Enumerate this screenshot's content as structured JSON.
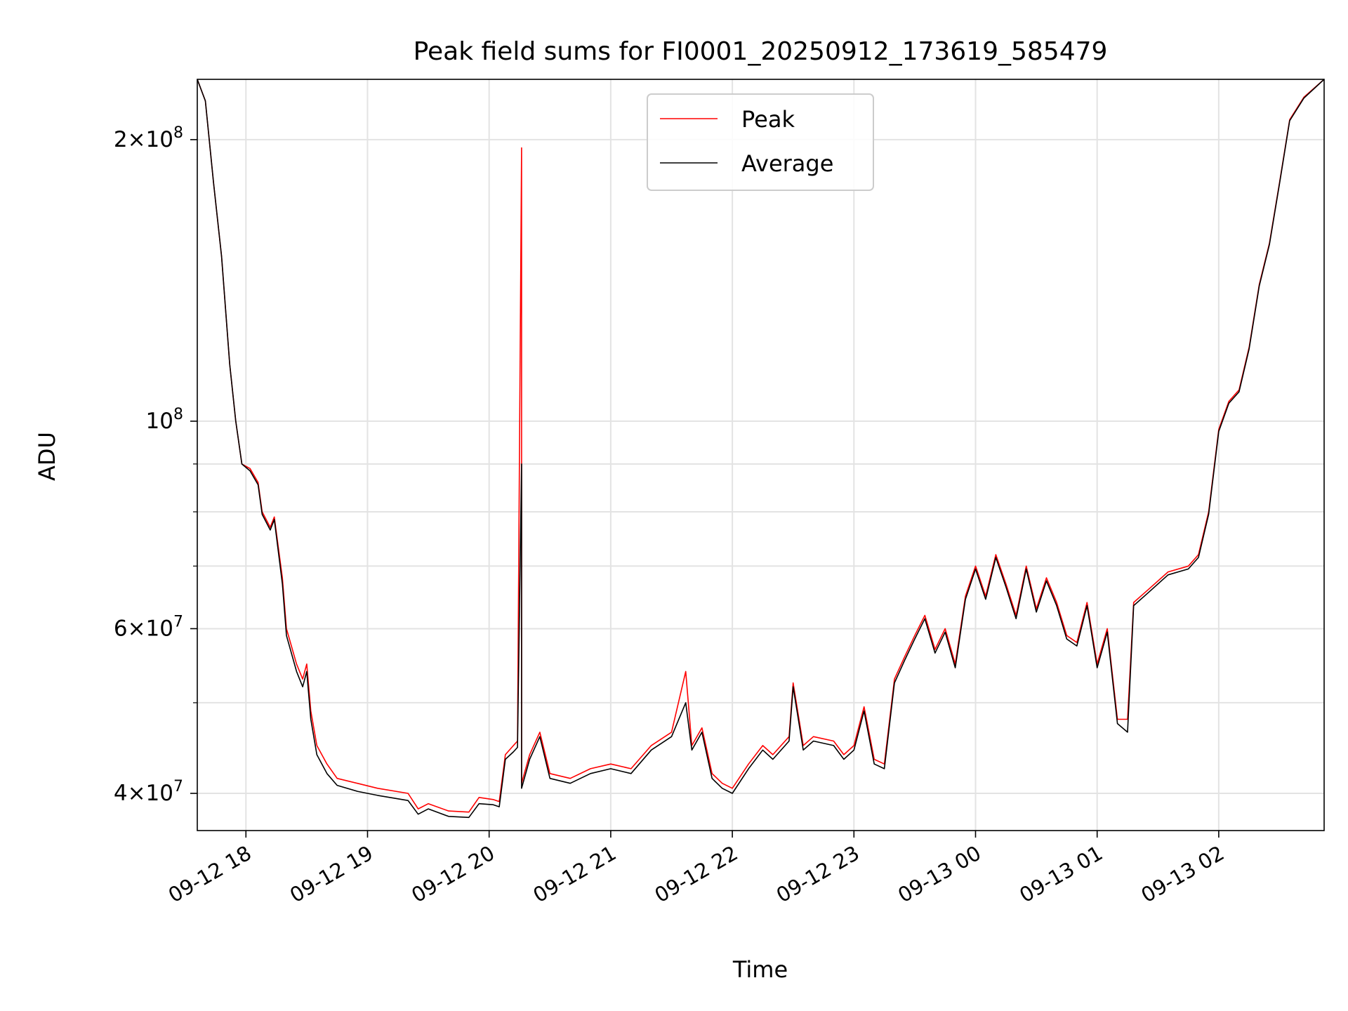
{
  "chart_data": {
    "type": "line",
    "title": "Peak field sums for FI0001_20250912_173619_585479",
    "xlabel": "Time",
    "ylabel": "ADU",
    "yscale": "log",
    "ylim": [
      36500000,
      232000000
    ],
    "xlim": [
      "2025-09-12 17:36",
      "2025-09-13 02:52"
    ],
    "x_ticks": [
      "2025-09-12 18:00",
      "2025-09-12 19:00",
      "2025-09-12 20:00",
      "2025-09-12 21:00",
      "2025-09-12 22:00",
      "2025-09-12 23:00",
      "2025-09-13 00:00",
      "2025-09-13 01:00",
      "2025-09-13 02:00"
    ],
    "x_tick_labels": [
      "09-12 18",
      "09-12 19",
      "09-12 20",
      "09-12 21",
      "09-12 22",
      "09-12 23",
      "09-13 00",
      "09-13 01",
      "09-13 02"
    ],
    "y_ticks": [
      {
        "value": 200000000,
        "mantissa": "2",
        "exponent": "8"
      },
      {
        "value": 100000000,
        "mantissa": "",
        "exponent": "8"
      },
      {
        "value": 60000000,
        "mantissa": "6",
        "exponent": "7"
      },
      {
        "value": 40000000,
        "mantissa": "4",
        "exponent": "7"
      }
    ],
    "y_minor_ticks": [
      50000000,
      70000000,
      80000000,
      90000000
    ],
    "grid": true,
    "legend_position": "upper center",
    "colors": {
      "peak": "#ff0000",
      "average": "#000000"
    },
    "series": [
      {
        "name": "Peak",
        "color": "#ff0000",
        "points": [
          [
            "2025-09-12 17:36",
            232000000
          ],
          [
            "2025-09-12 17:40",
            220000000
          ],
          [
            "2025-09-12 17:44",
            180000000
          ],
          [
            "2025-09-12 17:48",
            150000000
          ],
          [
            "2025-09-12 17:52",
            115000000
          ],
          [
            "2025-09-12 17:55",
            100000000
          ],
          [
            "2025-09-12 17:58",
            90000000
          ],
          [
            "2025-09-12 18:02",
            89000000
          ],
          [
            "2025-09-12 18:06",
            86000000
          ],
          [
            "2025-09-12 18:08",
            80000000
          ],
          [
            "2025-09-12 18:12",
            77000000
          ],
          [
            "2025-09-12 18:14",
            79000000
          ],
          [
            "2025-09-12 18:18",
            68000000
          ],
          [
            "2025-09-12 18:20",
            60000000
          ],
          [
            "2025-09-12 18:25",
            55000000
          ],
          [
            "2025-09-12 18:28",
            53000000
          ],
          [
            "2025-09-12 18:30",
            55000000
          ],
          [
            "2025-09-12 18:32",
            49000000
          ],
          [
            "2025-09-12 18:35",
            45000000
          ],
          [
            "2025-09-12 18:40",
            43000000
          ],
          [
            "2025-09-12 18:45",
            41500000
          ],
          [
            "2025-09-12 18:55",
            41000000
          ],
          [
            "2025-09-12 19:05",
            40500000
          ],
          [
            "2025-09-12 19:20",
            40000000
          ],
          [
            "2025-09-12 19:25",
            38500000
          ],
          [
            "2025-09-12 19:30",
            39000000
          ],
          [
            "2025-09-12 19:40",
            38300000
          ],
          [
            "2025-09-12 19:50",
            38200000
          ],
          [
            "2025-09-12 19:55",
            39600000
          ],
          [
            "2025-09-12 20:02",
            39400000
          ],
          [
            "2025-09-12 20:05",
            39200000
          ],
          [
            "2025-09-12 20:08",
            44000000
          ],
          [
            "2025-09-12 20:12",
            45000000
          ],
          [
            "2025-09-12 20:14",
            45500000
          ],
          [
            "2025-09-12 20:16",
            196000000
          ],
          [
            "2025-09-12 20:16",
            41000000
          ],
          [
            "2025-09-12 20:20",
            44000000
          ],
          [
            "2025-09-12 20:25",
            46500000
          ],
          [
            "2025-09-12 20:30",
            42000000
          ],
          [
            "2025-09-12 20:40",
            41500000
          ],
          [
            "2025-09-12 20:50",
            42500000
          ],
          [
            "2025-09-12 21:00",
            43000000
          ],
          [
            "2025-09-12 21:10",
            42500000
          ],
          [
            "2025-09-12 21:20",
            45000000
          ],
          [
            "2025-09-12 21:30",
            46500000
          ],
          [
            "2025-09-12 21:37",
            54000000
          ],
          [
            "2025-09-12 21:40",
            45000000
          ],
          [
            "2025-09-12 21:45",
            47000000
          ],
          [
            "2025-09-12 21:50",
            42000000
          ],
          [
            "2025-09-12 21:55",
            41000000
          ],
          [
            "2025-09-12 22:00",
            40500000
          ],
          [
            "2025-09-12 22:08",
            43000000
          ],
          [
            "2025-09-12 22:15",
            45000000
          ],
          [
            "2025-09-12 22:20",
            44000000
          ],
          [
            "2025-09-12 22:28",
            46000000
          ],
          [
            "2025-09-12 22:30",
            52500000
          ],
          [
            "2025-09-12 22:35",
            45000000
          ],
          [
            "2025-09-12 22:40",
            46000000
          ],
          [
            "2025-09-12 22:50",
            45500000
          ],
          [
            "2025-09-12 22:55",
            44000000
          ],
          [
            "2025-09-12 23:00",
            45000000
          ],
          [
            "2025-09-12 23:05",
            49500000
          ],
          [
            "2025-09-12 23:10",
            43500000
          ],
          [
            "2025-09-12 23:15",
            43000000
          ],
          [
            "2025-09-12 23:20",
            53000000
          ],
          [
            "2025-09-12 23:25",
            56000000
          ],
          [
            "2025-09-12 23:30",
            59000000
          ],
          [
            "2025-09-12 23:35",
            62000000
          ],
          [
            "2025-09-12 23:40",
            57000000
          ],
          [
            "2025-09-12 23:45",
            60000000
          ],
          [
            "2025-09-12 23:50",
            55000000
          ],
          [
            "2025-09-12 23:55",
            65000000
          ],
          [
            "2025-09-13 00:00",
            70000000
          ],
          [
            "2025-09-13 00:05",
            65000000
          ],
          [
            "2025-09-13 00:10",
            72000000
          ],
          [
            "2025-09-13 00:15",
            67000000
          ],
          [
            "2025-09-13 00:20",
            62000000
          ],
          [
            "2025-09-13 00:25",
            70000000
          ],
          [
            "2025-09-13 00:30",
            63000000
          ],
          [
            "2025-09-13 00:35",
            68000000
          ],
          [
            "2025-09-13 00:40",
            64000000
          ],
          [
            "2025-09-13 00:45",
            59000000
          ],
          [
            "2025-09-13 00:50",
            58000000
          ],
          [
            "2025-09-13 00:55",
            64000000
          ],
          [
            "2025-09-13 01:00",
            55000000
          ],
          [
            "2025-09-13 01:05",
            60000000
          ],
          [
            "2025-09-13 01:10",
            48000000
          ],
          [
            "2025-09-13 01:15",
            48000000
          ],
          [
            "2025-09-13 01:18",
            64000000
          ],
          [
            "2025-09-13 01:25",
            66000000
          ],
          [
            "2025-09-13 01:35",
            69000000
          ],
          [
            "2025-09-13 01:45",
            70000000
          ],
          [
            "2025-09-13 01:50",
            72000000
          ],
          [
            "2025-09-13 01:55",
            80000000
          ],
          [
            "2025-09-13 02:00",
            98000000
          ],
          [
            "2025-09-13 02:05",
            105000000
          ],
          [
            "2025-09-13 02:10",
            108000000
          ],
          [
            "2025-09-13 02:15",
            120000000
          ],
          [
            "2025-09-13 02:20",
            140000000
          ],
          [
            "2025-09-13 02:25",
            155000000
          ],
          [
            "2025-09-13 02:30",
            180000000
          ],
          [
            "2025-09-13 02:35",
            210000000
          ],
          [
            "2025-09-13 02:42",
            222000000
          ],
          [
            "2025-09-13 02:52",
            232000000
          ]
        ]
      },
      {
        "name": "Average",
        "color": "#000000",
        "points": [
          [
            "2025-09-12 17:36",
            232000000
          ],
          [
            "2025-09-12 17:40",
            220000000
          ],
          [
            "2025-09-12 17:44",
            180000000
          ],
          [
            "2025-09-12 17:48",
            150000000
          ],
          [
            "2025-09-12 17:52",
            115000000
          ],
          [
            "2025-09-12 17:55",
            100000000
          ],
          [
            "2025-09-12 17:58",
            90000000
          ],
          [
            "2025-09-12 18:02",
            88500000
          ],
          [
            "2025-09-12 18:06",
            85500000
          ],
          [
            "2025-09-12 18:08",
            79500000
          ],
          [
            "2025-09-12 18:12",
            76500000
          ],
          [
            "2025-09-12 18:14",
            78500000
          ],
          [
            "2025-09-12 18:18",
            67000000
          ],
          [
            "2025-09-12 18:20",
            59000000
          ],
          [
            "2025-09-12 18:25",
            54000000
          ],
          [
            "2025-09-12 18:28",
            52000000
          ],
          [
            "2025-09-12 18:30",
            54000000
          ],
          [
            "2025-09-12 18:32",
            48000000
          ],
          [
            "2025-09-12 18:35",
            44000000
          ],
          [
            "2025-09-12 18:40",
            42000000
          ],
          [
            "2025-09-12 18:45",
            40800000
          ],
          [
            "2025-09-12 18:55",
            40200000
          ],
          [
            "2025-09-12 19:05",
            39800000
          ],
          [
            "2025-09-12 19:20",
            39300000
          ],
          [
            "2025-09-12 19:25",
            38000000
          ],
          [
            "2025-09-12 19:30",
            38500000
          ],
          [
            "2025-09-12 19:40",
            37800000
          ],
          [
            "2025-09-12 19:50",
            37700000
          ],
          [
            "2025-09-12 19:55",
            39000000
          ],
          [
            "2025-09-12 20:02",
            38900000
          ],
          [
            "2025-09-12 20:05",
            38700000
          ],
          [
            "2025-09-12 20:08",
            43500000
          ],
          [
            "2025-09-12 20:12",
            44300000
          ],
          [
            "2025-09-12 20:14",
            44800000
          ],
          [
            "2025-09-12 20:16",
            90000000
          ],
          [
            "2025-09-12 20:16",
            40500000
          ],
          [
            "2025-09-12 20:20",
            43500000
          ],
          [
            "2025-09-12 20:25",
            46000000
          ],
          [
            "2025-09-12 20:30",
            41500000
          ],
          [
            "2025-09-12 20:40",
            41000000
          ],
          [
            "2025-09-12 20:50",
            42000000
          ],
          [
            "2025-09-12 21:00",
            42500000
          ],
          [
            "2025-09-12 21:10",
            42000000
          ],
          [
            "2025-09-12 21:20",
            44500000
          ],
          [
            "2025-09-12 21:30",
            46000000
          ],
          [
            "2025-09-12 21:37",
            50000000
          ],
          [
            "2025-09-12 21:40",
            44500000
          ],
          [
            "2025-09-12 21:45",
            46500000
          ],
          [
            "2025-09-12 21:50",
            41500000
          ],
          [
            "2025-09-12 21:55",
            40500000
          ],
          [
            "2025-09-12 22:00",
            40000000
          ],
          [
            "2025-09-12 22:08",
            42500000
          ],
          [
            "2025-09-12 22:15",
            44500000
          ],
          [
            "2025-09-12 22:20",
            43500000
          ],
          [
            "2025-09-12 22:28",
            45500000
          ],
          [
            "2025-09-12 22:30",
            52000000
          ],
          [
            "2025-09-12 22:35",
            44500000
          ],
          [
            "2025-09-12 22:40",
            45500000
          ],
          [
            "2025-09-12 22:50",
            45000000
          ],
          [
            "2025-09-12 22:55",
            43500000
          ],
          [
            "2025-09-12 23:00",
            44500000
          ],
          [
            "2025-09-12 23:05",
            49000000
          ],
          [
            "2025-09-12 23:10",
            43000000
          ],
          [
            "2025-09-12 23:15",
            42500000
          ],
          [
            "2025-09-12 23:20",
            52500000
          ],
          [
            "2025-09-12 23:25",
            55500000
          ],
          [
            "2025-09-12 23:30",
            58500000
          ],
          [
            "2025-09-12 23:35",
            61500000
          ],
          [
            "2025-09-12 23:40",
            56500000
          ],
          [
            "2025-09-12 23:45",
            59500000
          ],
          [
            "2025-09-12 23:50",
            54500000
          ],
          [
            "2025-09-12 23:55",
            64500000
          ],
          [
            "2025-09-13 00:00",
            69500000
          ],
          [
            "2025-09-13 00:05",
            64500000
          ],
          [
            "2025-09-13 00:10",
            71500000
          ],
          [
            "2025-09-13 00:15",
            66500000
          ],
          [
            "2025-09-13 00:20",
            61500000
          ],
          [
            "2025-09-13 00:25",
            69500000
          ],
          [
            "2025-09-13 00:30",
            62500000
          ],
          [
            "2025-09-13 00:35",
            67500000
          ],
          [
            "2025-09-13 00:40",
            63500000
          ],
          [
            "2025-09-13 00:45",
            58500000
          ],
          [
            "2025-09-13 00:50",
            57500000
          ],
          [
            "2025-09-13 00:55",
            63500000
          ],
          [
            "2025-09-13 01:00",
            54500000
          ],
          [
            "2025-09-13 01:05",
            59500000
          ],
          [
            "2025-09-13 01:10",
            47500000
          ],
          [
            "2025-09-13 01:15",
            46500000
          ],
          [
            "2025-09-13 01:18",
            63500000
          ],
          [
            "2025-09-13 01:25",
            65500000
          ],
          [
            "2025-09-13 01:35",
            68500000
          ],
          [
            "2025-09-13 01:45",
            69500000
          ],
          [
            "2025-09-13 01:50",
            71500000
          ],
          [
            "2025-09-13 01:55",
            79500000
          ],
          [
            "2025-09-13 02:00",
            97500000
          ],
          [
            "2025-09-13 02:05",
            104500000
          ],
          [
            "2025-09-13 02:10",
            107500000
          ],
          [
            "2025-09-13 02:15",
            119500000
          ],
          [
            "2025-09-13 02:20",
            139500000
          ],
          [
            "2025-09-13 02:25",
            154500000
          ],
          [
            "2025-09-13 02:30",
            179500000
          ],
          [
            "2025-09-13 02:35",
            209500000
          ],
          [
            "2025-09-13 02:42",
            221500000
          ],
          [
            "2025-09-13 02:52",
            232000000
          ]
        ]
      }
    ]
  }
}
